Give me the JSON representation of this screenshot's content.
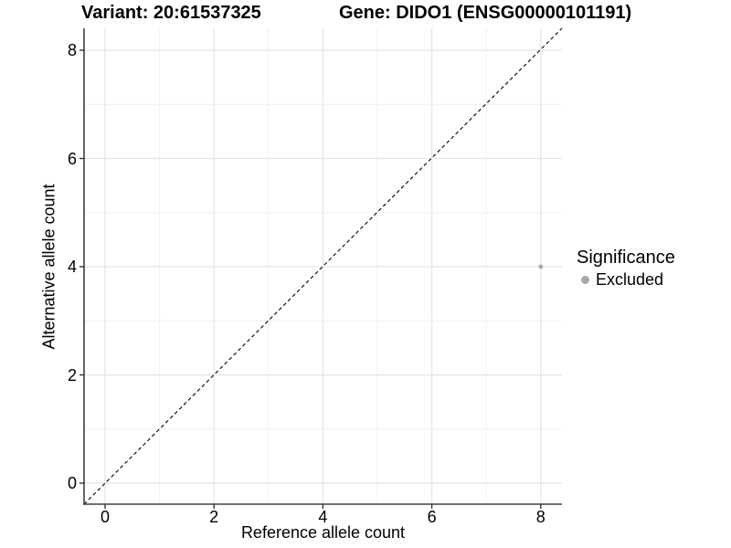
{
  "header": {
    "variant_title": "Variant: 20:61537325",
    "gene_title": "Gene: DIDO1 (ENSG00000101191)"
  },
  "axes": {
    "x": {
      "label": "Reference allele count",
      "tick_labels": [
        "0",
        "2",
        "4",
        "6",
        "8"
      ]
    },
    "y": {
      "label": "Alternative allele count",
      "tick_labels": [
        "0",
        "2",
        "4",
        "6",
        "8"
      ]
    }
  },
  "legend": {
    "title": "Significance",
    "items": [
      {
        "label": "Excluded",
        "color": "#a8a8a8"
      }
    ]
  },
  "chart_data": {
    "type": "scatter",
    "title": "Variant: 20:61537325  /  Gene: DIDO1 (ENSG00000101191)",
    "xlabel": "Reference allele count",
    "ylabel": "Alternative allele count",
    "xlim": [
      -0.4,
      8.4
    ],
    "ylim": [
      -0.4,
      8.4
    ],
    "x_ticks": [
      0,
      2,
      4,
      6,
      8
    ],
    "y_ticks": [
      0,
      2,
      4,
      6,
      8
    ],
    "grid": true,
    "legend_position": "right",
    "series": [
      {
        "name": "Excluded",
        "color": "#a8a8a8",
        "points": [
          {
            "x": 8,
            "y": 4
          }
        ]
      }
    ],
    "reference_line": {
      "type": "identity y=x",
      "style": "dashed",
      "color": "#000000"
    },
    "colors": {
      "grid_major": "#e4e4e4",
      "grid_minor": "#f0f0f0",
      "axis_line": "#404040",
      "point": "#a8a8a8"
    }
  }
}
